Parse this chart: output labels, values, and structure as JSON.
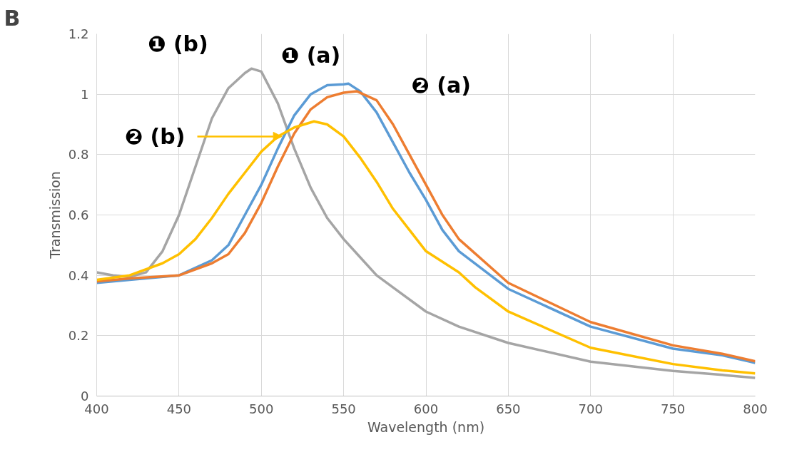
{
  "chart_data": {
    "type": "line",
    "title": "B",
    "xlabel": "Wavelength (nm)",
    "ylabel": "Transmission",
    "xlim": [
      400,
      800
    ],
    "ylim": [
      0,
      1.2
    ],
    "xticks": [
      400,
      450,
      500,
      550,
      600,
      650,
      700,
      750,
      800
    ],
    "yticks": [
      0,
      0.2,
      0.4,
      0.6,
      0.8,
      1,
      1.2
    ],
    "grid": true,
    "marker": "none",
    "line_style": "solid",
    "series": [
      {
        "name": "❶ (b)",
        "color": "#a5a5a5",
        "x": [
          400,
          410,
          420,
          430,
          440,
          450,
          460,
          470,
          480,
          490,
          494,
          500,
          510,
          520,
          530,
          540,
          550,
          560,
          570,
          580,
          600,
          620,
          650,
          700,
          750,
          780,
          800
        ],
        "values": [
          0.41,
          0.4,
          0.395,
          0.41,
          0.48,
          0.6,
          0.76,
          0.92,
          1.02,
          1.07,
          1.085,
          1.075,
          0.97,
          0.82,
          0.69,
          0.59,
          0.52,
          0.46,
          0.4,
          0.36,
          0.28,
          0.23,
          0.176,
          0.114,
          0.083,
          0.07,
          0.06
        ]
      },
      {
        "name": "❶ (a)",
        "color": "#5b9bd5",
        "x": [
          400,
          420,
          450,
          470,
          480,
          490,
          500,
          510,
          520,
          530,
          540,
          550,
          553,
          560,
          570,
          580,
          590,
          600,
          610,
          620,
          650,
          700,
          750,
          780,
          800
        ],
        "values": [
          0.375,
          0.385,
          0.4,
          0.45,
          0.5,
          0.6,
          0.7,
          0.82,
          0.93,
          1.0,
          1.03,
          1.033,
          1.035,
          1.01,
          0.94,
          0.84,
          0.74,
          0.65,
          0.55,
          0.48,
          0.355,
          0.23,
          0.157,
          0.135,
          0.11
        ]
      },
      {
        "name": "❷ (a)",
        "color": "#ed7d31",
        "x": [
          400,
          420,
          450,
          470,
          480,
          490,
          500,
          510,
          520,
          530,
          540,
          550,
          558,
          570,
          580,
          590,
          600,
          610,
          620,
          650,
          700,
          750,
          780,
          800
        ],
        "values": [
          0.38,
          0.39,
          0.4,
          0.44,
          0.47,
          0.54,
          0.64,
          0.76,
          0.87,
          0.95,
          0.99,
          1.005,
          1.01,
          0.98,
          0.9,
          0.8,
          0.7,
          0.6,
          0.52,
          0.375,
          0.245,
          0.168,
          0.14,
          0.115
        ]
      },
      {
        "name": "❷ (b)",
        "color": "#ffc000",
        "x": [
          400,
          420,
          440,
          450,
          460,
          470,
          480,
          490,
          500,
          510,
          520,
          532,
          540,
          550,
          560,
          570,
          580,
          590,
          600,
          620,
          630,
          650,
          700,
          750,
          780,
          800
        ],
        "values": [
          0.385,
          0.4,
          0.44,
          0.47,
          0.52,
          0.59,
          0.67,
          0.74,
          0.81,
          0.86,
          0.89,
          0.91,
          0.9,
          0.86,
          0.79,
          0.71,
          0.62,
          0.55,
          0.48,
          0.41,
          0.36,
          0.28,
          0.16,
          0.106,
          0.085,
          0.075
        ]
      }
    ]
  }
}
